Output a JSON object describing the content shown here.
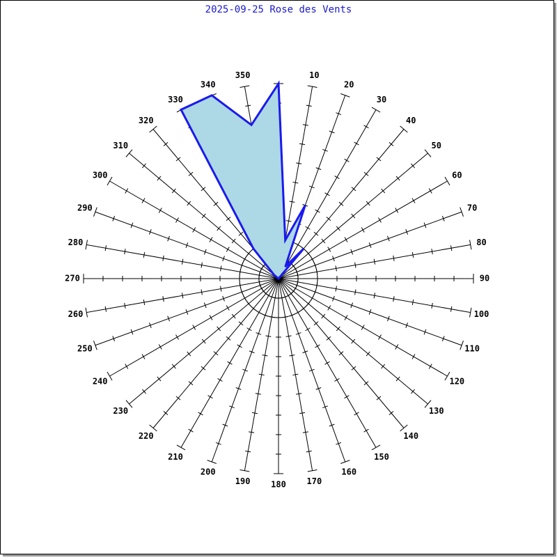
{
  "chart_data": {
    "type": "polar-area",
    "title": "2025-09-25 Rose des Vents",
    "categories": [
      null,
      "10",
      "20",
      "30",
      "40",
      "50",
      "60",
      "70",
      "80",
      "90",
      "100",
      "110",
      "120",
      "130",
      "140",
      "150",
      "160",
      "170",
      "180",
      "190",
      "200",
      "210",
      "220",
      "230",
      "240",
      "250",
      "260",
      "270",
      "280",
      "290",
      "300",
      "310",
      "320",
      "330",
      "340",
      "350"
    ],
    "values": [
      10,
      2,
      4,
      0.7,
      2,
      0,
      0,
      0,
      0,
      0,
      0,
      0,
      0,
      0,
      0,
      0,
      0,
      0,
      0,
      0,
      0,
      0,
      0,
      0,
      0,
      0,
      0,
      0,
      0,
      0,
      0,
      0.3,
      2,
      10,
      10,
      8
    ],
    "color": "#1a1aee",
    "fill": "#add8e6",
    "rlim": [
      0,
      10
    ],
    "rticks": [
      1,
      2,
      3,
      4,
      5,
      6,
      7,
      8,
      9,
      10
    ]
  }
}
